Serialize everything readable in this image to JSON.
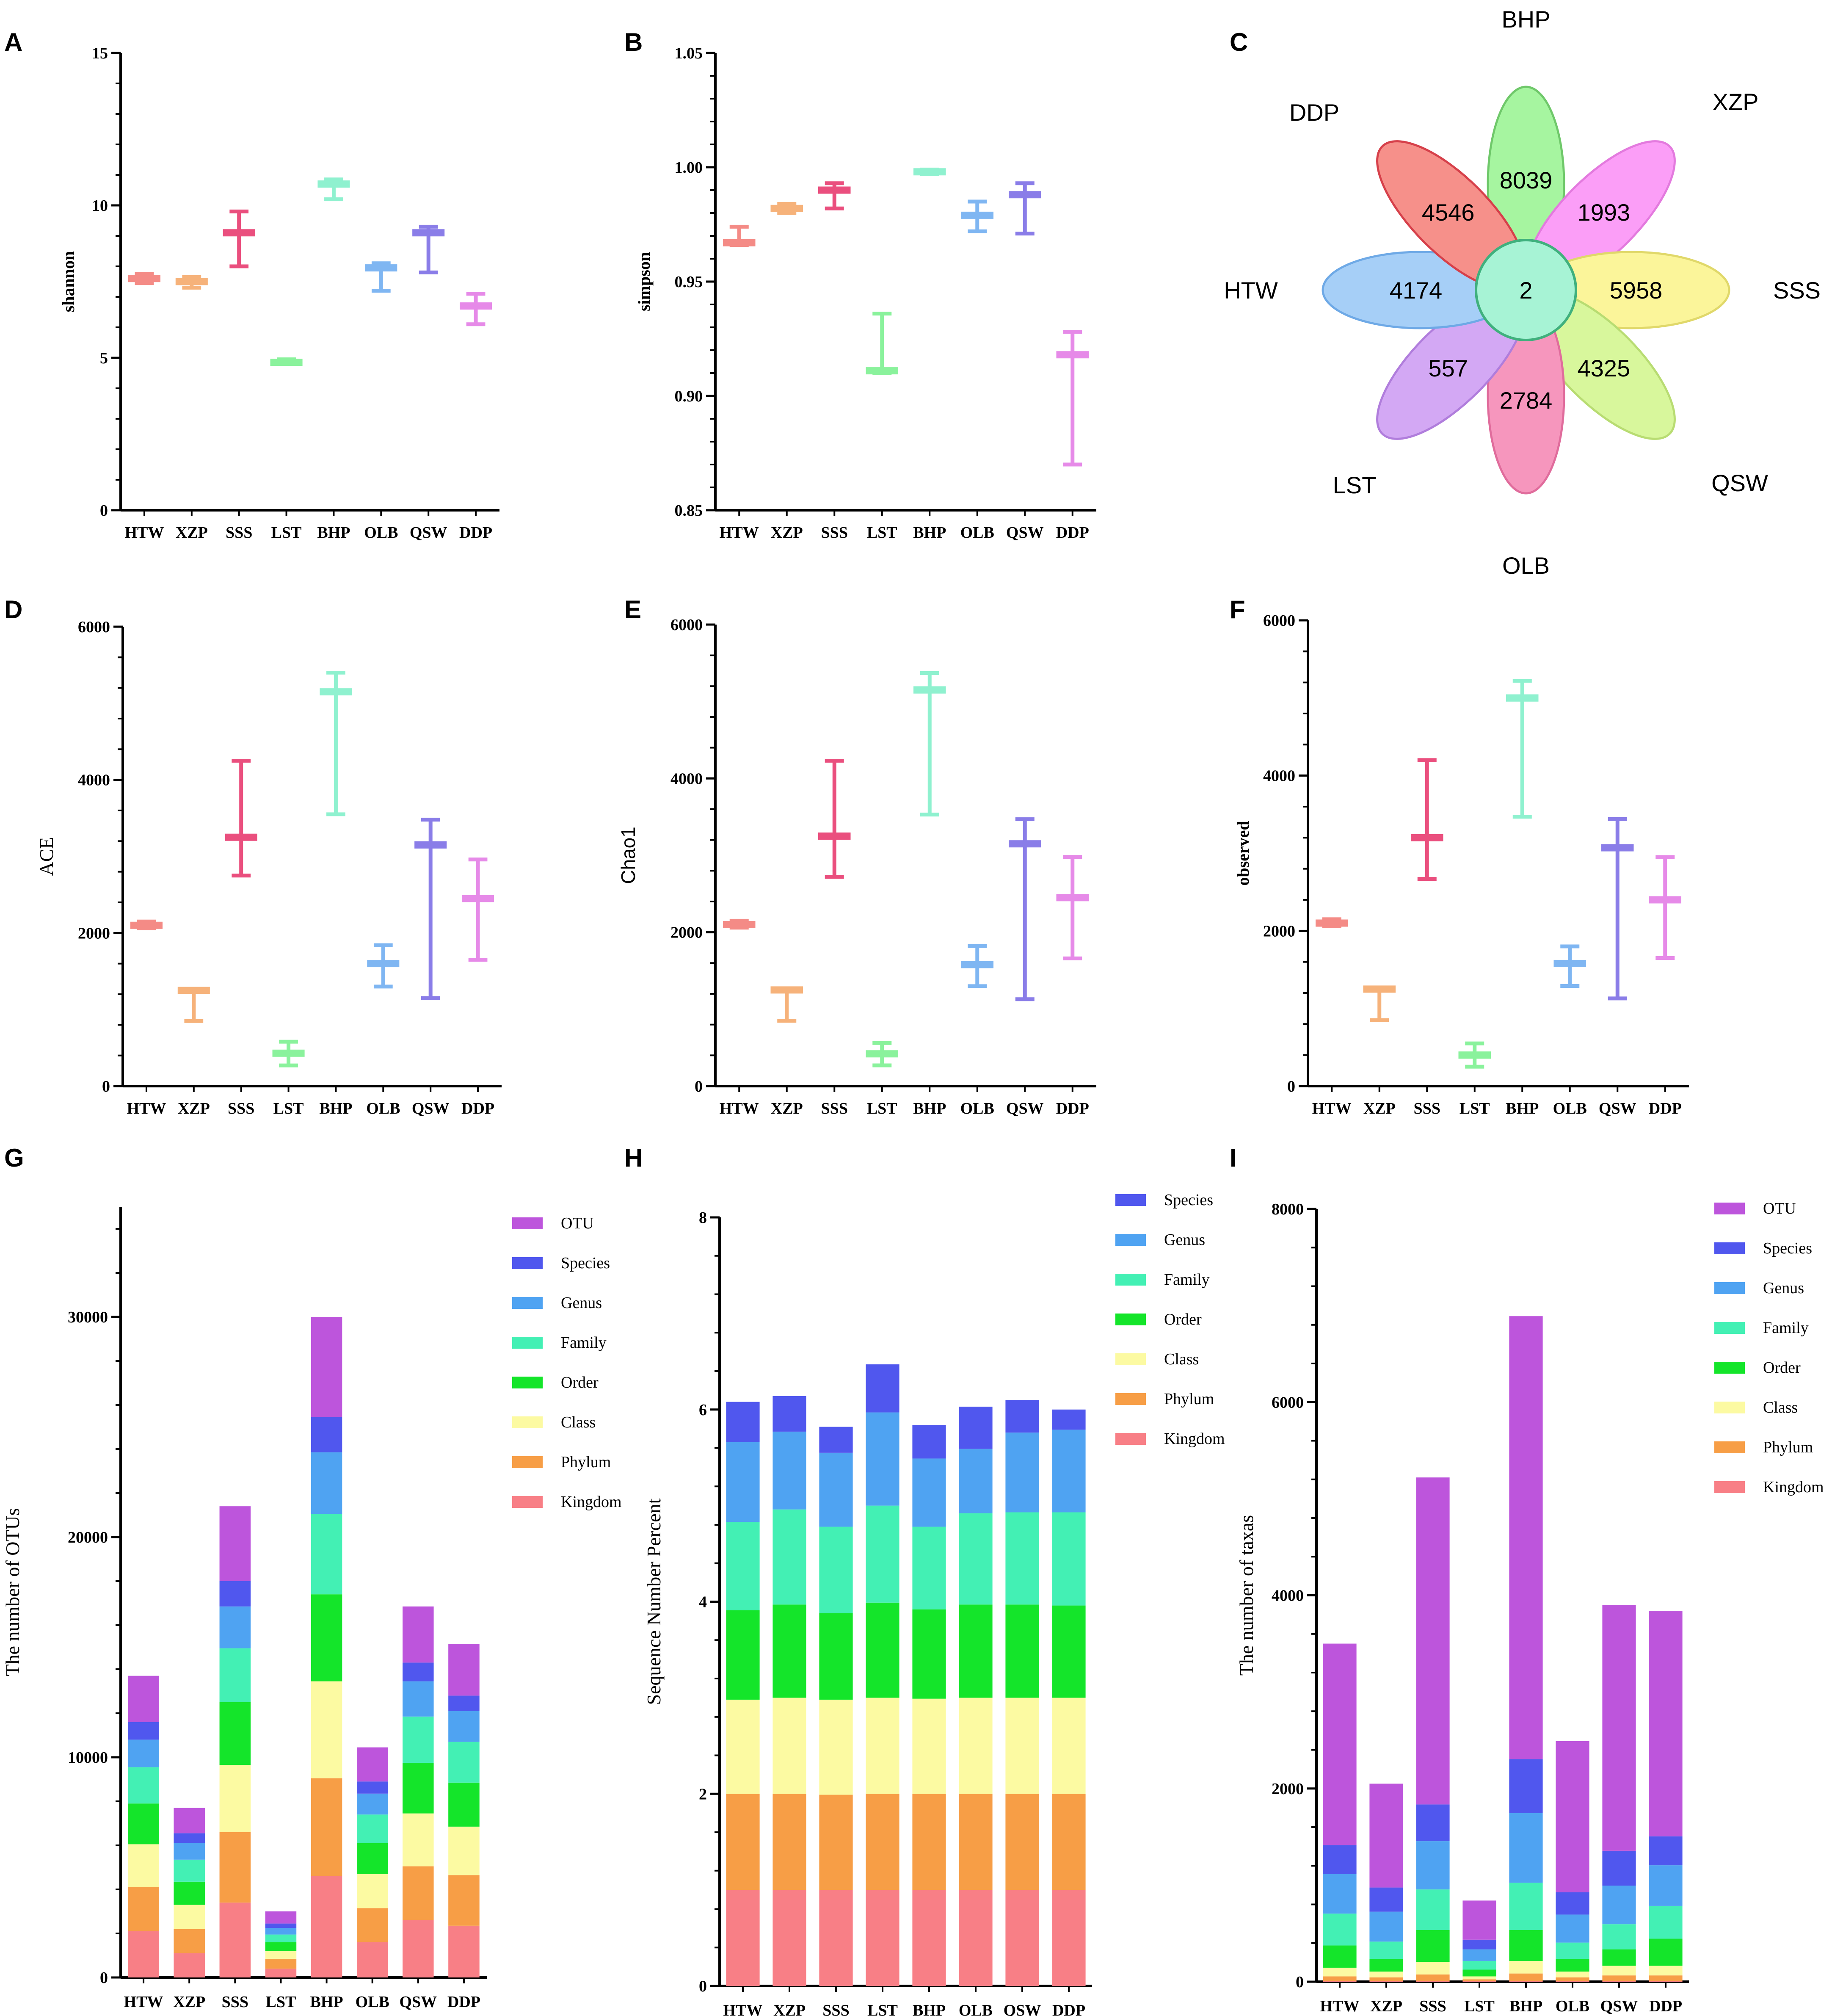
{
  "panel_labels": [
    "A",
    "B",
    "C",
    "D",
    "E",
    "F",
    "G",
    "H",
    "I"
  ],
  "chart_data": [
    {
      "panel": "A",
      "type": "box",
      "ylabel": "shannon",
      "ylim": [
        0,
        15
      ],
      "yticks": [
        0,
        5,
        10,
        15
      ],
      "categories": [
        "HTW",
        "XZP",
        "SSS",
        "LST",
        "BHP",
        "OLB",
        "QSW",
        "DDP"
      ],
      "colors": [
        "#f48b86",
        "#f6b27a",
        "#ea4f7e",
        "#8af29c",
        "#8ff1cf",
        "#7fb6f2",
        "#8a7de8",
        "#e68ae8"
      ],
      "median": [
        7.6,
        7.5,
        9.1,
        4.85,
        10.7,
        7.95,
        9.1,
        6.7
      ],
      "min": [
        7.45,
        7.3,
        8.0,
        4.8,
        10.2,
        7.2,
        7.8,
        6.1
      ],
      "max": [
        7.75,
        7.65,
        9.8,
        4.95,
        10.85,
        8.1,
        9.3,
        7.1
      ]
    },
    {
      "panel": "B",
      "type": "box",
      "ylabel": "simpson",
      "ylim": [
        0.85,
        1.05
      ],
      "yticks": [
        0.85,
        0.9,
        0.95,
        1.0,
        1.05
      ],
      "yticklabels": [
        "0.85",
        "0.90",
        "0.95",
        "1.00",
        "1.05"
      ],
      "categories": [
        "HTW",
        "XZP",
        "SSS",
        "LST",
        "BHP",
        "OLB",
        "QSW",
        "DDP"
      ],
      "colors": [
        "#f48b86",
        "#f6b27a",
        "#ea4f7e",
        "#8af29c",
        "#8ff1cf",
        "#7fb6f2",
        "#8a7de8",
        "#e68ae8"
      ],
      "median": [
        0.967,
        0.982,
        0.99,
        0.911,
        0.998,
        0.979,
        0.988,
        0.918
      ],
      "min": [
        0.966,
        0.98,
        0.982,
        0.91,
        0.997,
        0.972,
        0.971,
        0.87
      ],
      "max": [
        0.974,
        0.984,
        0.993,
        0.936,
        0.999,
        0.985,
        0.993,
        0.928
      ]
    },
    {
      "panel": "C",
      "type": "venn-flower",
      "center_value": "2",
      "petals": [
        {
          "name": "BHP",
          "value": "8039",
          "color": "#a6f5a0",
          "stroke": "#6fc86a"
        },
        {
          "name": "XZP",
          "value": "1993",
          "color": "#fb9ef7",
          "stroke": "#e37ade"
        },
        {
          "name": "SSS",
          "value": "5958",
          "color": "#fbf59a",
          "stroke": "#e0d86a"
        },
        {
          "name": "QSW",
          "value": "4325",
          "color": "#d8f79c",
          "stroke": "#b8dc72"
        },
        {
          "name": "OLB",
          "value": "2784",
          "color": "#f696bd",
          "stroke": "#e06c9c"
        },
        {
          "name": "LST",
          "value": "557",
          "color": "#d3a8f4",
          "stroke": "#b07ddc"
        },
        {
          "name": "HTW",
          "value": "4174",
          "color": "#a6cff7",
          "stroke": "#6ea9e6"
        },
        {
          "name": "DDP",
          "value": "4546",
          "color": "#f6908a",
          "stroke": "#d6404a"
        }
      ],
      "center_color": "#a7f3d5",
      "center_stroke": "#3fb07d"
    },
    {
      "panel": "D",
      "type": "box",
      "ylabel": "ACE",
      "ylim": [
        0,
        6000
      ],
      "yticks": [
        0,
        2000,
        4000,
        6000
      ],
      "categories": [
        "HTW",
        "XZP",
        "SSS",
        "LST",
        "BHP",
        "OLB",
        "QSW",
        "DDP"
      ],
      "colors": [
        "#f48b86",
        "#f6b27a",
        "#ea4f7e",
        "#8af29c",
        "#8ff1cf",
        "#7fb6f2",
        "#8a7de8",
        "#e68ae8"
      ],
      "median": [
        2100,
        1250,
        3250,
        430,
        5150,
        1600,
        3150,
        2450
      ],
      "min": [
        2060,
        850,
        2750,
        270,
        3550,
        1300,
        1150,
        1650
      ],
      "max": [
        2150,
        1270,
        4250,
        580,
        5400,
        1840,
        3480,
        2960
      ]
    },
    {
      "panel": "E",
      "type": "box",
      "ylabel": "Chao1",
      "ylim": [
        0,
        6000
      ],
      "yticks": [
        0,
        2000,
        4000,
        6000
      ],
      "categories": [
        "HTW",
        "XZP",
        "SSS",
        "LST",
        "BHP",
        "OLB",
        "QSW",
        "DDP"
      ],
      "colors": [
        "#f48b86",
        "#f6b27a",
        "#ea4f7e",
        "#8af29c",
        "#8ff1cf",
        "#7fb6f2",
        "#8a7de8",
        "#e68ae8"
      ],
      "median": [
        2100,
        1250,
        3250,
        420,
        5150,
        1580,
        3150,
        2450
      ],
      "min": [
        2060,
        850,
        2720,
        270,
        3530,
        1300,
        1130,
        1660
      ],
      "max": [
        2150,
        1270,
        4230,
        560,
        5370,
        1820,
        3470,
        2980
      ]
    },
    {
      "panel": "F",
      "type": "box",
      "ylabel": "observed",
      "ylim": [
        0,
        6000
      ],
      "yticks": [
        0,
        2000,
        4000,
        6000
      ],
      "categories": [
        "HTW",
        "XZP",
        "SSS",
        "LST",
        "BHP",
        "OLB",
        "QSW",
        "DDP"
      ],
      "colors": [
        "#f48b86",
        "#f6b27a",
        "#ea4f7e",
        "#8af29c",
        "#8ff1cf",
        "#7fb6f2",
        "#8a7de8",
        "#e68ae8"
      ],
      "median": [
        2100,
        1250,
        3200,
        400,
        5000,
        1580,
        3070,
        2400
      ],
      "min": [
        2060,
        850,
        2670,
        250,
        3470,
        1290,
        1130,
        1650
      ],
      "max": [
        2150,
        1270,
        4200,
        550,
        5220,
        1800,
        3440,
        2950
      ]
    },
    {
      "panel": "G",
      "type": "stacked-bar",
      "ylabel": "The number of OTUs",
      "ylim": [
        0,
        35000
      ],
      "yticks": [
        0,
        10000,
        20000,
        30000
      ],
      "categories": [
        "HTW",
        "XZP",
        "SSS",
        "LST",
        "BHP",
        "OLB",
        "QSW",
        "DDP"
      ],
      "legend": [
        "OTU",
        "Species",
        "Genus",
        "Family",
        "Order",
        "Class",
        "Phylum",
        "Kingdom"
      ],
      "series": [
        {
          "name": "Kingdom",
          "color": "#f87f86",
          "values": [
            2100,
            1100,
            3400,
            400,
            4600,
            1600,
            2600,
            2350
          ]
        },
        {
          "name": "Phylum",
          "color": "#f79e46",
          "values": [
            2000,
            1100,
            3200,
            450,
            4450,
            1550,
            2450,
            2300
          ]
        },
        {
          "name": "Class",
          "color": "#fcfaa2",
          "values": [
            1950,
            1100,
            3050,
            350,
            4400,
            1550,
            2400,
            2200
          ]
        },
        {
          "name": "Order",
          "color": "#14e52a",
          "values": [
            1850,
            1050,
            2850,
            400,
            3950,
            1400,
            2300,
            2000
          ]
        },
        {
          "name": "Family",
          "color": "#43f0b4",
          "values": [
            1650,
            1000,
            2450,
            350,
            3650,
            1300,
            2100,
            1850
          ]
        },
        {
          "name": "Genus",
          "color": "#4fa3f2",
          "values": [
            1250,
            750,
            1900,
            300,
            2800,
            950,
            1600,
            1400
          ]
        },
        {
          "name": "Species",
          "color": "#5057ee",
          "values": [
            800,
            450,
            1150,
            200,
            1600,
            550,
            850,
            700
          ]
        },
        {
          "name": "OTU",
          "color": "#bd55dc",
          "values": [
            2100,
            1150,
            3400,
            550,
            4550,
            1550,
            2550,
            2350
          ]
        }
      ]
    },
    {
      "panel": "H",
      "type": "stacked-bar",
      "ylabel": "Sequence Number Percent",
      "ylim": [
        0,
        8
      ],
      "yticks": [
        0,
        2,
        4,
        6,
        8
      ],
      "categories": [
        "HTW",
        "XZP",
        "SSS",
        "LST",
        "BHP",
        "OLB",
        "QSW",
        "DDP"
      ],
      "legend": [
        "Species",
        "Genus",
        "Family",
        "Order",
        "Class",
        "Phylum",
        "Kingdom"
      ],
      "series": [
        {
          "name": "Kingdom",
          "color": "#f87f86",
          "values": [
            1.0,
            1.0,
            1.0,
            1.0,
            1.0,
            1.0,
            1.0,
            1.0
          ]
        },
        {
          "name": "Phylum",
          "color": "#f79e46",
          "values": [
            1.0,
            1.0,
            0.99,
            1.0,
            1.0,
            1.0,
            1.0,
            1.0
          ]
        },
        {
          "name": "Class",
          "color": "#fcfaa2",
          "values": [
            0.98,
            1.0,
            0.99,
            1.0,
            0.99,
            1.0,
            1.0,
            1.0
          ]
        },
        {
          "name": "Order",
          "color": "#14e52a",
          "values": [
            0.93,
            0.97,
            0.9,
            0.99,
            0.93,
            0.97,
            0.97,
            0.96
          ]
        },
        {
          "name": "Family",
          "color": "#43f0b4",
          "values": [
            0.92,
            0.99,
            0.9,
            1.01,
            0.86,
            0.95,
            0.96,
            0.97
          ]
        },
        {
          "name": "Genus",
          "color": "#4fa3f2",
          "values": [
            0.83,
            0.81,
            0.77,
            0.97,
            0.71,
            0.67,
            0.83,
            0.86
          ]
        },
        {
          "name": "Species",
          "color": "#5057ee",
          "values": [
            0.42,
            0.37,
            0.27,
            0.5,
            0.35,
            0.44,
            0.34,
            0.21
          ]
        }
      ]
    },
    {
      "panel": "I",
      "type": "stacked-bar",
      "ylabel": "The number of taxas",
      "ylim": [
        0,
        8000
      ],
      "yticks": [
        0,
        2000,
        4000,
        6000,
        8000
      ],
      "categories": [
        "HTW",
        "XZP",
        "SSS",
        "LST",
        "BHP",
        "OLB",
        "QSW",
        "DDP"
      ],
      "legend": [
        "OTU",
        "Species",
        "Genus",
        "Family",
        "Order",
        "Class",
        "Phylum",
        "Kingdom"
      ],
      "series": [
        {
          "name": "Kingdom",
          "color": "#f87f86",
          "values": [
            5,
            5,
            5,
            5,
            5,
            5,
            5,
            5
          ]
        },
        {
          "name": "Phylum",
          "color": "#f79e46",
          "values": [
            50,
            40,
            70,
            20,
            80,
            40,
            60,
            60
          ]
        },
        {
          "name": "Class",
          "color": "#fcfaa2",
          "values": [
            90,
            60,
            130,
            30,
            130,
            60,
            100,
            100
          ]
        },
        {
          "name": "Order",
          "color": "#14e52a",
          "values": [
            230,
            130,
            330,
            70,
            320,
            130,
            170,
            280
          ]
        },
        {
          "name": "Family",
          "color": "#43f0b4",
          "values": [
            330,
            180,
            420,
            90,
            490,
            170,
            260,
            340
          ]
        },
        {
          "name": "Genus",
          "color": "#4fa3f2",
          "values": [
            410,
            310,
            500,
            120,
            720,
            290,
            400,
            420
          ]
        },
        {
          "name": "Species",
          "color": "#5057ee",
          "values": [
            300,
            250,
            380,
            100,
            560,
            230,
            360,
            300
          ]
        },
        {
          "name": "OTU",
          "color": "#bd55dc",
          "values": [
            2085,
            1075,
            3385,
            405,
            4585,
            1565,
            2545,
            2335
          ]
        }
      ]
    }
  ]
}
